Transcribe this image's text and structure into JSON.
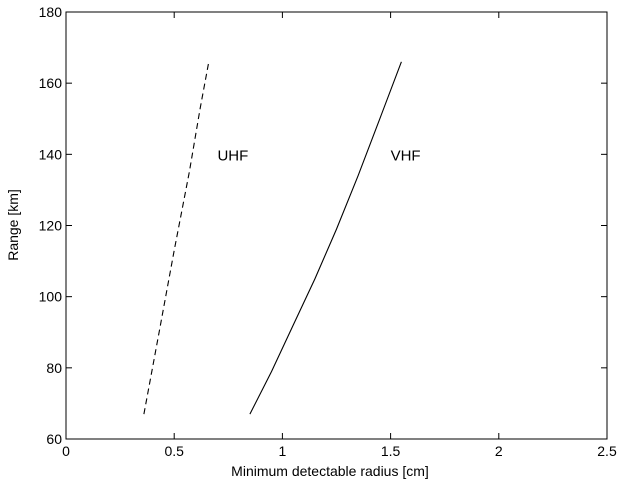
{
  "chart_data": {
    "type": "line",
    "xlabel": "Minimum detectable radius [cm]",
    "ylabel": "Range [km]",
    "xlim": [
      0,
      2.5
    ],
    "ylim": [
      60,
      180
    ],
    "xticks": [
      0,
      0.5,
      1,
      1.5,
      2,
      2.5
    ],
    "xtick_labels": [
      "0",
      "0.5",
      "1",
      "1.5",
      "2",
      "2.5"
    ],
    "yticks": [
      60,
      80,
      100,
      120,
      140,
      160,
      180
    ],
    "ytick_labels": [
      "60",
      "80",
      "100",
      "120",
      "140",
      "160",
      "180"
    ],
    "grid": false,
    "legend": "none",
    "series": [
      {
        "style": "dashed",
        "color": "#000000",
        "x": [
          0.36,
          0.43,
          0.5,
          0.57,
          0.62,
          0.66
        ],
        "y": [
          67,
          90,
          113,
          135,
          153,
          166
        ]
      },
      {
        "style": "solid",
        "color": "#000000",
        "x": [
          0.85,
          0.95,
          1.05,
          1.15,
          1.25,
          1.35,
          1.45,
          1.55
        ],
        "y": [
          67,
          79,
          92,
          105,
          119,
          134,
          150,
          166
        ]
      }
    ],
    "annotations": [
      {
        "text": "UHF",
        "x": 0.7,
        "y": 140
      },
      {
        "text": "VHF",
        "x": 1.5,
        "y": 140
      }
    ]
  }
}
